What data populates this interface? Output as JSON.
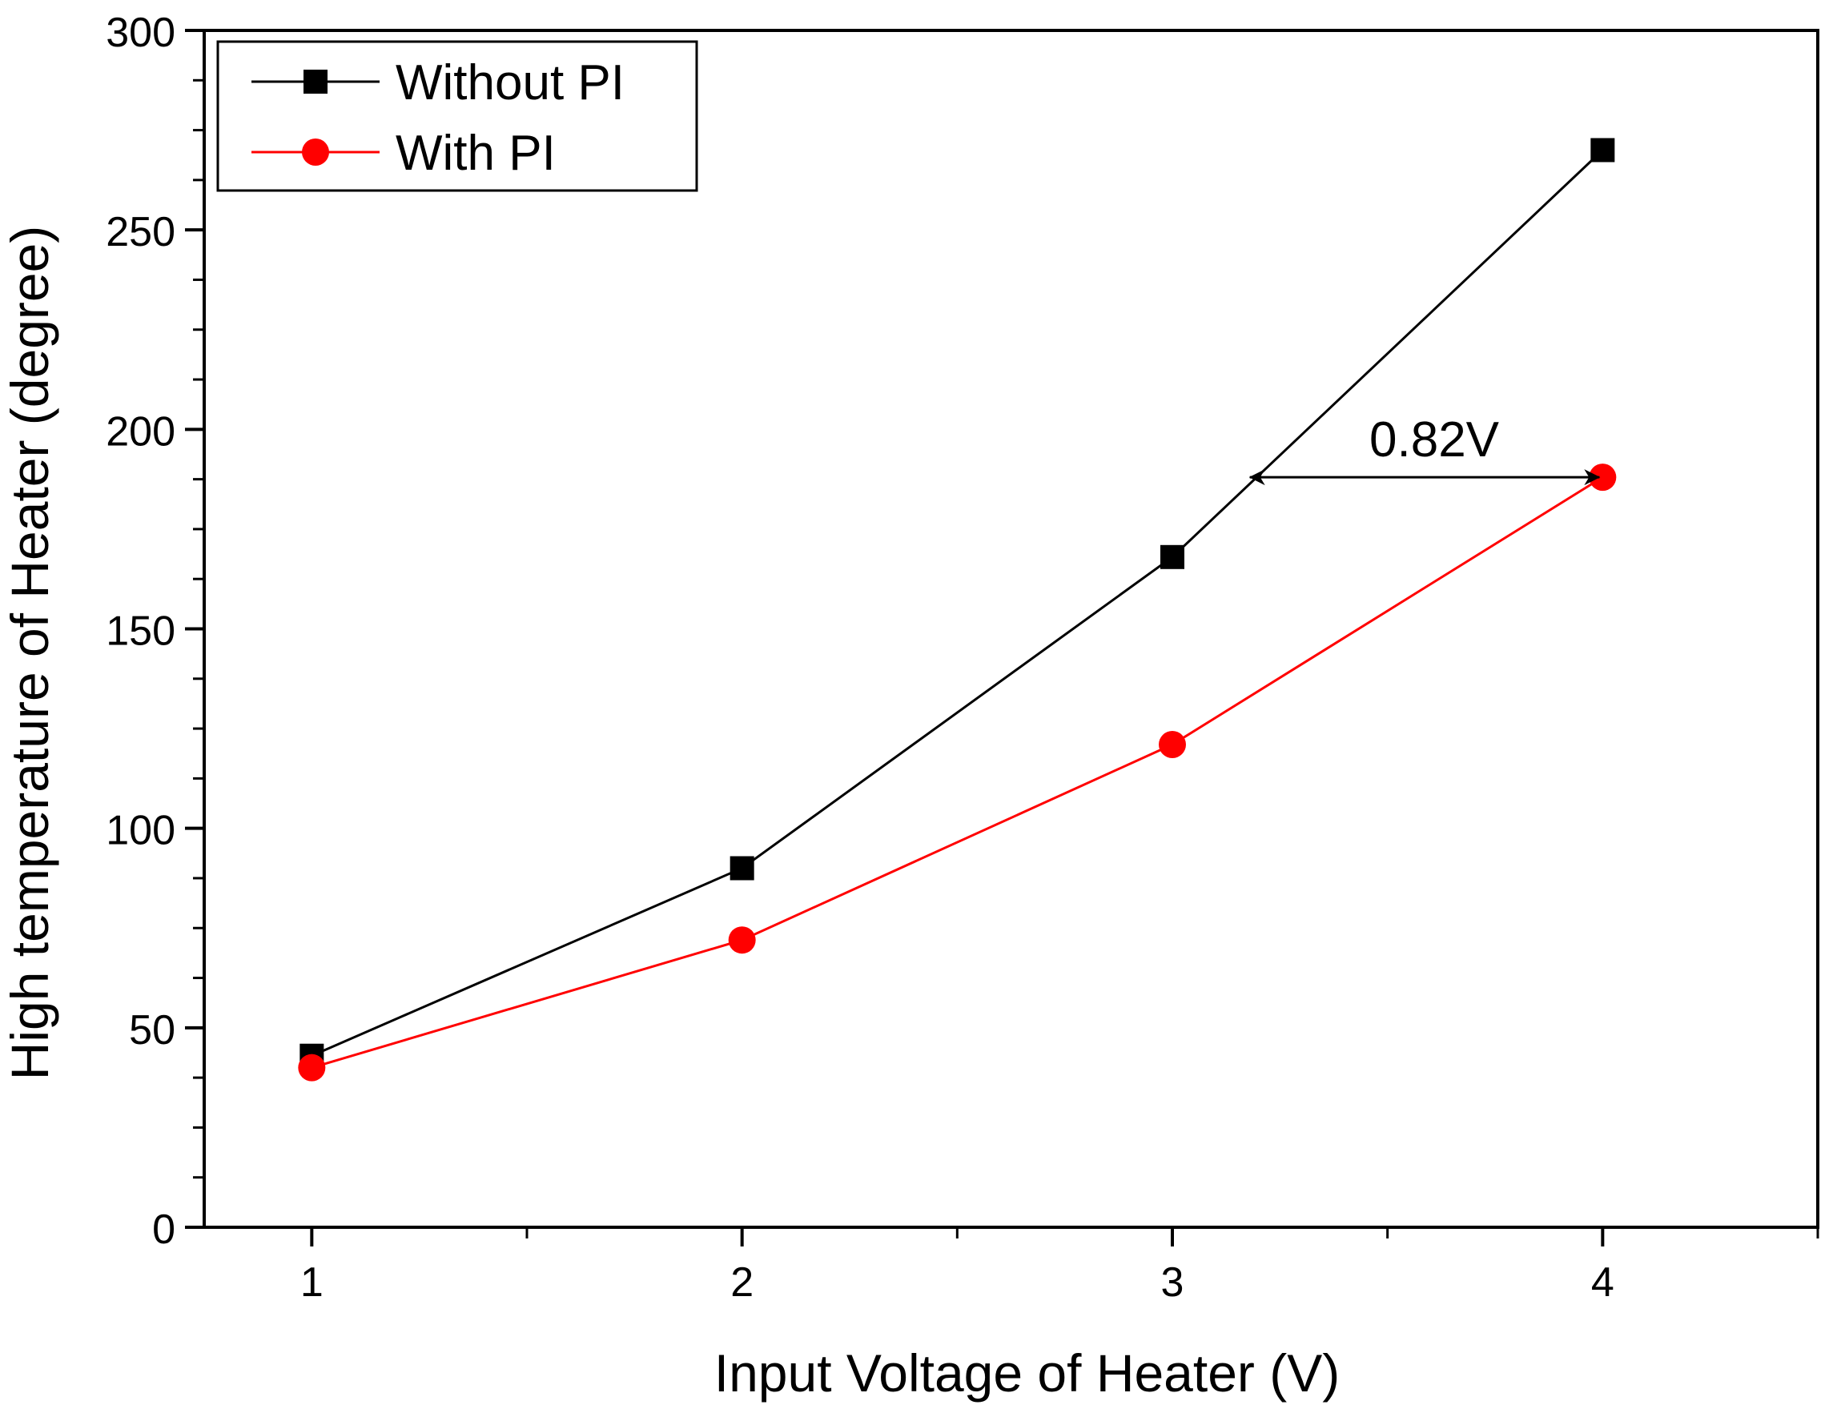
{
  "chart_data": {
    "type": "line",
    "title": "",
    "xlabel": "Input Voltage of Heater (V)",
    "ylabel": "High temperature of Heater (degree)",
    "xlim": [
      0.75,
      4.5
    ],
    "ylim": [
      0,
      300
    ],
    "x_ticks": [
      1,
      2,
      3,
      4
    ],
    "x_tick_labels": [
      "1",
      "2",
      "3",
      "4"
    ],
    "x_minor_ticks": [
      1.5,
      2.5,
      3.5,
      4.5
    ],
    "y_ticks": [
      0,
      50,
      100,
      150,
      200,
      250,
      300
    ],
    "y_tick_labels": [
      "0",
      "50",
      "100",
      "150",
      "200",
      "250",
      "300"
    ],
    "grid": false,
    "legend_position": "top-left",
    "x": [
      1,
      2,
      3,
      4
    ],
    "series": [
      {
        "name": "Without PI",
        "values": [
          43,
          90,
          168,
          270
        ],
        "color": "#000000",
        "marker": "square"
      },
      {
        "name": "With PI",
        "values": [
          40,
          72,
          121,
          188
        ],
        "color": "#ff0000",
        "marker": "circle"
      }
    ],
    "annotations": [
      {
        "text": "0.82V",
        "arrow_from": [
          3.18,
          188
        ],
        "arrow_to": [
          4,
          188
        ],
        "double_headed": true
      }
    ]
  }
}
